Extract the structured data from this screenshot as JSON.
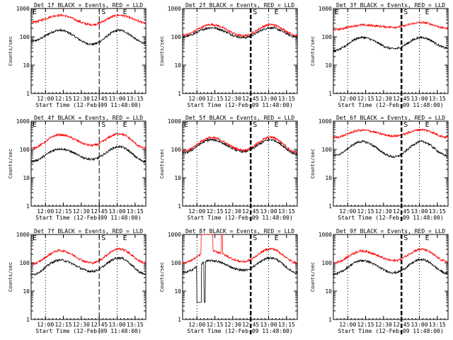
{
  "chart_data": [
    {
      "type": "line",
      "title": "Det 1f BLACK = Events, RED = LLD",
      "xlabel": "Start Time (12-Feb-09 11:48:00)",
      "ylabel": "Counts/sec",
      "yscale": "log",
      "ylim": [
        1,
        1000
      ],
      "xlim": [
        11.8,
        13.4
      ],
      "xticks": [
        "12:00",
        "12:15",
        "12:30",
        "12:45",
        "13:00",
        "13:15"
      ],
      "markers": {
        "dotted": [
          12.0,
          13.0
        ],
        "dashed": 12.75,
        "dashed_style": "thin",
        "labels": [
          {
            "text": "E",
            "x": 11.82
          },
          {
            "text": "S",
            "x": 12.78
          },
          {
            "text": "E",
            "x": 13.08
          }
        ]
      },
      "series": [
        {
          "name": "BLACK",
          "color": "#000000",
          "peaks": [
            {
              "t": 12.2,
              "v": 170
            },
            {
              "t": 13.03,
              "v": 170
            }
          ],
          "troughs": [
            {
              "t": 11.8,
              "v": 70
            },
            {
              "t": 12.65,
              "v": 55
            },
            {
              "t": 13.4,
              "v": 60
            }
          ]
        },
        {
          "name": "RED",
          "color": "#ff0000",
          "peaks": [
            {
              "t": 12.2,
              "v": 580
            },
            {
              "t": 13.03,
              "v": 580
            }
          ],
          "troughs": [
            {
              "t": 11.8,
              "v": 330
            },
            {
              "t": 12.65,
              "v": 270
            },
            {
              "t": 13.4,
              "v": 320
            }
          ]
        }
      ]
    },
    {
      "type": "line",
      "title": "Det 2f BLACK = Events, RED = LLD",
      "xlabel": "Start Time (12-Feb-09 11:48:00)",
      "ylabel": "Counts/sec",
      "yscale": "log",
      "ylim": [
        1,
        1000
      ],
      "xlim": [
        11.8,
        13.4
      ],
      "xticks": [
        "12:00",
        "12:15",
        "12:30",
        "12:45",
        "13:00",
        "13:15"
      ],
      "markers": {
        "dotted": [
          12.0,
          13.0
        ],
        "dashed": 12.75,
        "dashed_style": "thick",
        "labels": [
          {
            "text": "S",
            "x": 12.78
          },
          {
            "text": "E",
            "x": 13.08
          }
        ]
      },
      "series": [
        {
          "name": "BLACK",
          "color": "#000000",
          "peaks": [
            {
              "t": 12.2,
              "v": 210
            },
            {
              "t": 13.03,
              "v": 210
            }
          ],
          "troughs": [
            {
              "t": 11.8,
              "v": 100
            },
            {
              "t": 12.65,
              "v": 95
            },
            {
              "t": 13.4,
              "v": 100
            }
          ]
        },
        {
          "name": "RED",
          "color": "#ff0000",
          "peaks": [
            {
              "t": 12.2,
              "v": 270
            },
            {
              "t": 13.03,
              "v": 270
            }
          ],
          "troughs": [
            {
              "t": 11.8,
              "v": 115
            },
            {
              "t": 12.65,
              "v": 110
            },
            {
              "t": 13.4,
              "v": 115
            }
          ]
        }
      ]
    },
    {
      "type": "line",
      "title": "Det 3f BLACK = Events, RED = LLD",
      "xlabel": "Start Time (12-Feb-09 11:48:00)",
      "ylabel": "Counts/sec",
      "yscale": "log",
      "ylim": [
        1,
        1000
      ],
      "xlim": [
        11.8,
        13.4
      ],
      "xticks": [
        "12:00",
        "12:15",
        "12:30",
        "12:45",
        "13:00",
        "13:15"
      ],
      "markers": {
        "dotted": [
          12.0,
          13.0
        ],
        "dashed": 12.75,
        "dashed_style": "thick",
        "labels": [
          {
            "text": "E",
            "x": 11.82
          },
          {
            "text": "S",
            "x": 12.78
          },
          {
            "text": "E",
            "x": 13.08
          }
        ]
      },
      "series": [
        {
          "name": "BLACK",
          "color": "#000000",
          "peaks": [
            {
              "t": 12.2,
              "v": 95
            },
            {
              "t": 13.03,
              "v": 95
            }
          ],
          "troughs": [
            {
              "t": 11.8,
              "v": 32
            },
            {
              "t": 12.65,
              "v": 38
            },
            {
              "t": 13.4,
              "v": 40
            }
          ]
        },
        {
          "name": "RED",
          "color": "#ff0000",
          "peaks": [
            {
              "t": 12.2,
              "v": 260
            },
            {
              "t": 13.03,
              "v": 320
            }
          ],
          "troughs": [
            {
              "t": 11.8,
              "v": 180
            },
            {
              "t": 12.65,
              "v": 220
            },
            {
              "t": 13.4,
              "v": 200
            }
          ]
        }
      ]
    },
    {
      "type": "line",
      "title": "Det 4f BLACK = Events, RED = LLD",
      "xlabel": "Start Time (12-Feb-09 11:48:00)",
      "ylabel": "Counts/sec",
      "yscale": "log",
      "ylim": [
        1,
        1000
      ],
      "xlim": [
        11.8,
        13.4
      ],
      "xticks": [
        "12:00",
        "12:15",
        "12:30",
        "12:45",
        "13:00",
        "13:15"
      ],
      "markers": {
        "dotted": [
          12.0,
          13.0
        ],
        "dashed": 12.75,
        "dashed_style": "thin",
        "labels": [
          {
            "text": "E",
            "x": 11.82
          },
          {
            "text": "S",
            "x": 12.78
          },
          {
            "text": "E",
            "x": 13.08
          }
        ]
      },
      "series": [
        {
          "name": "BLACK",
          "color": "#000000",
          "peaks": [
            {
              "t": 12.2,
              "v": 105
            },
            {
              "t": 13.03,
              "v": 125
            }
          ],
          "troughs": [
            {
              "t": 11.8,
              "v": 38
            },
            {
              "t": 12.65,
              "v": 45
            },
            {
              "t": 13.4,
              "v": 38
            }
          ]
        },
        {
          "name": "RED",
          "color": "#ff0000",
          "peaks": [
            {
              "t": 12.2,
              "v": 330
            },
            {
              "t": 13.03,
              "v": 360
            }
          ],
          "troughs": [
            {
              "t": 11.8,
              "v": 110
            },
            {
              "t": 12.65,
              "v": 140
            },
            {
              "t": 13.4,
              "v": 110
            }
          ]
        }
      ]
    },
    {
      "type": "line",
      "title": "Det 5f BLACK = Events, RED = LLD",
      "xlabel": "Start Time (12-Feb-09 11:48:00)",
      "ylabel": "Counts/sec",
      "yscale": "log",
      "ylim": [
        1,
        1000
      ],
      "xlim": [
        11.8,
        13.4
      ],
      "xticks": [
        "12:00",
        "12:15",
        "12:30",
        "12:45",
        "13:00",
        "13:15"
      ],
      "markers": {
        "dotted": [
          12.0,
          13.0
        ],
        "dashed": 12.75,
        "dashed_style": "thick",
        "labels": [
          {
            "text": "E",
            "x": 11.82
          },
          {
            "text": "S",
            "x": 12.78
          },
          {
            "text": "E",
            "x": 13.08
          }
        ]
      },
      "series": [
        {
          "name": "BLACK",
          "color": "#000000",
          "peaks": [
            {
              "t": 12.2,
              "v": 220
            },
            {
              "t": 13.03,
              "v": 220
            }
          ],
          "troughs": [
            {
              "t": 11.8,
              "v": 75
            },
            {
              "t": 12.65,
              "v": 85
            },
            {
              "t": 13.4,
              "v": 70
            }
          ]
        },
        {
          "name": "RED",
          "color": "#ff0000",
          "peaks": [
            {
              "t": 12.2,
              "v": 260
            },
            {
              "t": 13.03,
              "v": 270
            }
          ],
          "troughs": [
            {
              "t": 11.8,
              "v": 85
            },
            {
              "t": 12.65,
              "v": 95
            },
            {
              "t": 13.4,
              "v": 80
            }
          ]
        }
      ]
    },
    {
      "type": "line",
      "title": "Det 6f BLACK = Events, RED = LLD",
      "xlabel": "Start Time (12-Feb-09 11:48:00)",
      "ylabel": "Counts/sec",
      "yscale": "log",
      "ylim": [
        1,
        1000
      ],
      "xlim": [
        11.8,
        13.4
      ],
      "xticks": [
        "12:00",
        "12:15",
        "12:30",
        "12:45",
        "13:00",
        "13:15"
      ],
      "markers": {
        "dotted": [
          12.0,
          13.0
        ],
        "dashed": 12.75,
        "dashed_style": "thick",
        "labels": [
          {
            "text": "S",
            "x": 12.78
          },
          {
            "text": "E",
            "x": 13.08
          }
        ]
      },
      "series": [
        {
          "name": "BLACK",
          "color": "#000000",
          "peaks": [
            {
              "t": 12.2,
              "v": 190
            },
            {
              "t": 13.03,
              "v": 190
            }
          ],
          "troughs": [
            {
              "t": 11.8,
              "v": 60
            },
            {
              "t": 12.65,
              "v": 55
            },
            {
              "t": 13.4,
              "v": 60
            }
          ]
        },
        {
          "name": "RED",
          "color": "#ff0000",
          "peaks": [
            {
              "t": 12.2,
              "v": 480
            },
            {
              "t": 13.03,
              "v": 500
            }
          ],
          "troughs": [
            {
              "t": 11.8,
              "v": 260
            },
            {
              "t": 12.65,
              "v": 300
            },
            {
              "t": 13.4,
              "v": 270
            }
          ]
        }
      ]
    },
    {
      "type": "line",
      "title": "Det 7f BLACK = Events, RED = LLD",
      "xlabel": "Start Time (12-Feb-09 11:48:00)",
      "ylabel": "Counts/sec",
      "yscale": "log",
      "ylim": [
        1,
        1000
      ],
      "xlim": [
        11.8,
        13.4
      ],
      "xticks": [
        "12:00",
        "12:15",
        "12:30",
        "12:45",
        "13:00",
        "13:15"
      ],
      "markers": {
        "dotted": [
          12.0,
          13.0
        ],
        "dashed": 12.75,
        "dashed_style": "thin",
        "labels": [
          {
            "text": "E",
            "x": 11.82
          },
          {
            "text": "S",
            "x": 12.78
          },
          {
            "text": "E",
            "x": 13.08
          }
        ]
      },
      "series": [
        {
          "name": "BLACK",
          "color": "#000000",
          "peaks": [
            {
              "t": 12.2,
              "v": 125
            },
            {
              "t": 13.03,
              "v": 150
            }
          ],
          "troughs": [
            {
              "t": 11.8,
              "v": 38
            },
            {
              "t": 12.65,
              "v": 50
            },
            {
              "t": 13.4,
              "v": 40
            }
          ]
        },
        {
          "name": "RED",
          "color": "#ff0000",
          "peaks": [
            {
              "t": 12.2,
              "v": 270
            },
            {
              "t": 13.03,
              "v": 310
            }
          ],
          "troughs": [
            {
              "t": 11.8,
              "v": 90
            },
            {
              "t": 12.65,
              "v": 100
            },
            {
              "t": 13.4,
              "v": 100
            }
          ]
        }
      ]
    },
    {
      "type": "line",
      "title": "Det 8f BLACK = Events, RED = LLD",
      "xlabel": "Start Time (12-Feb-09 11:48:00)",
      "ylabel": "Counts/sec",
      "yscale": "log",
      "ylim": [
        1,
        1000
      ],
      "xlim": [
        11.8,
        13.4
      ],
      "xticks": [
        "12:00",
        "12:15",
        "12:30",
        "12:45",
        "13:00",
        "13:15"
      ],
      "markers": {
        "dotted": [
          12.0,
          13.0
        ],
        "dashed": 12.75,
        "dashed_style": "thick",
        "labels": [
          {
            "text": "S",
            "x": 12.78
          },
          {
            "text": "E",
            "x": 13.08
          }
        ]
      },
      "series": [
        {
          "name": "BLACK",
          "color": "#000000",
          "peaks": [
            {
              "t": 12.2,
              "v": 120
            },
            {
              "t": 13.03,
              "v": 150
            }
          ],
          "troughs": [
            {
              "t": 11.8,
              "v": 45
            },
            {
              "t": 12.65,
              "v": 55
            },
            {
              "t": 13.4,
              "v": 45
            }
          ]
        },
        {
          "name": "RED",
          "color": "#ff0000",
          "peaks": [
            {
              "t": 12.2,
              "v": 260
            },
            {
              "t": 13.03,
              "v": 310
            }
          ],
          "troughs": [
            {
              "t": 11.8,
              "v": 100
            },
            {
              "t": 12.65,
              "v": 110
            },
            {
              "t": 13.4,
              "v": 100
            }
          ]
        }
      ],
      "anomalies": [
        {
          "series": "RED",
          "from": 12.06,
          "to": 12.22,
          "v": 1000
        },
        {
          "series": "RED",
          "from": 12.34,
          "to": 12.36,
          "v": 1000
        },
        {
          "series": "BLACK",
          "from": 12.0,
          "to": 12.06,
          "v": 4
        },
        {
          "series": "BLACK",
          "from": 12.1,
          "to": 12.12,
          "v": 4
        }
      ]
    },
    {
      "type": "line",
      "title": "Det 9f BLACK = Events, RED = LLD",
      "xlabel": "Start Time (12-Feb-09 11:48:00)",
      "ylabel": "Counts/sec",
      "yscale": "log",
      "ylim": [
        1,
        1000
      ],
      "xlim": [
        11.8,
        13.4
      ],
      "xticks": [
        "12:00",
        "12:15",
        "12:30",
        "12:45",
        "13:00",
        "13:15"
      ],
      "markers": {
        "dotted": [
          12.0,
          13.0
        ],
        "dashed": 12.75,
        "dashed_style": "thick",
        "labels": [
          {
            "text": "S",
            "x": 12.78
          },
          {
            "text": "E",
            "x": 13.08
          }
        ]
      },
      "series": [
        {
          "name": "BLACK",
          "color": "#000000",
          "peaks": [
            {
              "t": 12.2,
              "v": 120
            },
            {
              "t": 13.03,
              "v": 130
            }
          ],
          "troughs": [
            {
              "t": 11.8,
              "v": 40
            },
            {
              "t": 12.65,
              "v": 45
            },
            {
              "t": 13.4,
              "v": 42
            }
          ]
        },
        {
          "name": "RED",
          "color": "#ff0000",
          "peaks": [
            {
              "t": 12.2,
              "v": 260
            },
            {
              "t": 13.03,
              "v": 300
            }
          ],
          "troughs": [
            {
              "t": 11.8,
              "v": 100
            },
            {
              "t": 12.65,
              "v": 120
            },
            {
              "t": 13.4,
              "v": 110
            }
          ]
        }
      ]
    }
  ]
}
